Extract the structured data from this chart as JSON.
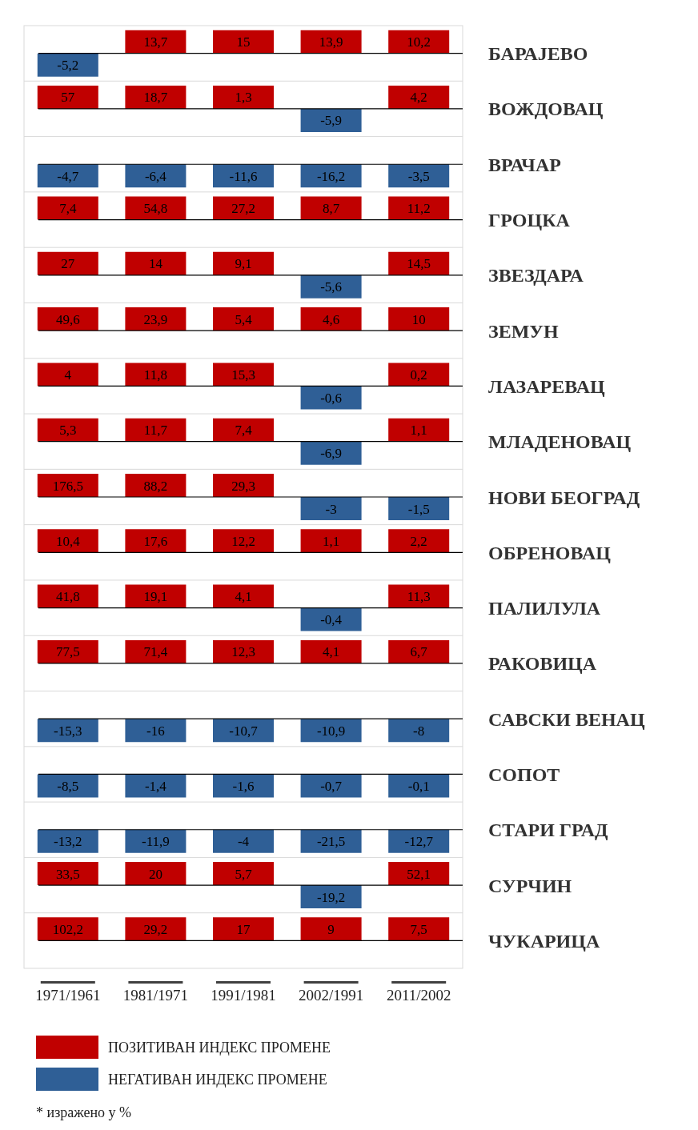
{
  "chart_data": {
    "type": "heatmap",
    "categories": [
      "1971/1961",
      "1981/1971",
      "1991/1981",
      "2002/1991",
      "2011/2002"
    ],
    "y_categories": [
      "БАРАЈЕВО",
      "ВОЖДОВАЦ",
      "ВРАЧАР",
      "ГРОЦКА",
      "ЗВЕЗДАРА",
      "ЗЕМУН",
      "ЛАЗАРЕВАЦ",
      "МЛАДЕНОВАЦ",
      "НОВИ БЕОГРАД",
      "ОБРЕНОВАЦ",
      "ПАЛИЛУЛА",
      "РАКОВИЦА",
      "САВСКИ ВЕНАЦ",
      "СОПОТ",
      "СТАРИ ГРАД",
      "СУРЧИН",
      "ЧУКАРИЦА"
    ],
    "cells": [
      [
        -5.2,
        13.7,
        15,
        13.9,
        10.2
      ],
      [
        57,
        18.7,
        1.3,
        -5.9,
        4.2
      ],
      [
        -4.7,
        -6.4,
        -11.6,
        -16.2,
        -3.5
      ],
      [
        7.4,
        54.8,
        27.2,
        8.7,
        11.2
      ],
      [
        27,
        14,
        9.1,
        -5.6,
        14.5
      ],
      [
        49.6,
        23.9,
        5.4,
        4.6,
        10
      ],
      [
        4,
        11.8,
        15.3,
        -0.6,
        0.2
      ],
      [
        5.3,
        11.7,
        7.4,
        -6.9,
        1.1
      ],
      [
        176.5,
        88.2,
        29.3,
        -3,
        -1.5
      ],
      [
        10.4,
        17.6,
        12.2,
        1.1,
        2.2
      ],
      [
        41.8,
        19.1,
        4.1,
        -0.4,
        11.3
      ],
      [
        77.5,
        71.4,
        12.3,
        4.1,
        6.7
      ],
      [
        -15.3,
        -16,
        -10.7,
        -10.9,
        -8
      ],
      [
        -8.5,
        -1.4,
        -1.6,
        -0.7,
        -0.1
      ],
      [
        -13.2,
        -11.9,
        -4,
        -21.5,
        -12.7
      ],
      [
        33.5,
        20,
        5.7,
        -19.2,
        52.1
      ],
      [
        102.2,
        29.2,
        17,
        9,
        7.5
      ]
    ],
    "cell_labels": [
      [
        "-5,2",
        "13,7",
        "15",
        "13,9",
        "10,2"
      ],
      [
        "57",
        "18,7",
        "1,3",
        "-5,9",
        "4,2"
      ],
      [
        "-4,7",
        "-6,4",
        "-11,6",
        "-16,2",
        "-3,5"
      ],
      [
        "7,4",
        "54,8",
        "27,2",
        "8,7",
        "11,2"
      ],
      [
        "27",
        "14",
        "9,1",
        "-5,6",
        "14,5"
      ],
      [
        "49,6",
        "23,9",
        "5,4",
        "4,6",
        "10"
      ],
      [
        "4",
        "11,8",
        "15,3",
        "-0,6",
        "0,2"
      ],
      [
        "5,3",
        "11,7",
        "7,4",
        "-6,9",
        "1,1"
      ],
      [
        "176,5",
        "88,2",
        "29,3",
        "-3",
        "-1,5"
      ],
      [
        "10,4",
        "17,6",
        "12,2",
        "1,1",
        "2,2"
      ],
      [
        "41,8",
        "19,1",
        "4,1",
        "-0,4",
        "11,3"
      ],
      [
        "77,5",
        "71,4",
        "12,3",
        "4,1",
        "6,7"
      ],
      [
        "-15,3",
        "-16",
        "-10,7",
        "-10,9",
        "-8"
      ],
      [
        "-8,5",
        "-1,4",
        "-1,6",
        "-0,7",
        "-0,1"
      ],
      [
        "-13,2",
        "-11,9",
        "-4",
        "-21,5",
        "-12,7"
      ],
      [
        "33,5",
        "20",
        "5,7",
        "-19,2",
        "52,1"
      ],
      [
        "102,2",
        "29,2",
        "17",
        "9",
        "7,5"
      ]
    ],
    "colors": [
      "#c00000",
      "#2f5f96"
    ],
    "grid": true,
    "annotations": [
      "ПОЗИТИВАН ИНДЕКС ПРОМЕНЕ",
      "НЕГАТИВАН ИНДЕКС ПРОМЕНЕ",
      "* изражено у %"
    ]
  }
}
